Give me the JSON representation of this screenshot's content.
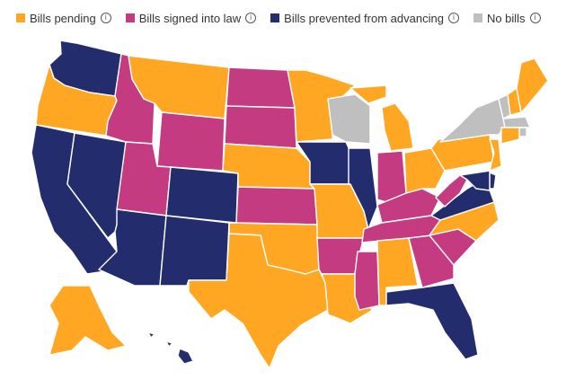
{
  "legend": [
    {
      "key": "pending",
      "label": "Bills pending",
      "color": "#FFA722",
      "icon": "info-icon"
    },
    {
      "key": "signed",
      "label": "Bills signed into law",
      "color": "#C43B82",
      "icon": "info-icon"
    },
    {
      "key": "prevented",
      "label": "Bills prevented from advancing",
      "color": "#232D6D",
      "icon": "info-icon"
    },
    {
      "key": "none",
      "label": "No bills",
      "color": "#BFBFBF",
      "icon": "info-icon"
    }
  ],
  "info_glyph": "i",
  "states": {
    "WA": "prevented",
    "OR": "pending",
    "CA": "prevented",
    "NV": "prevented",
    "ID": "signed",
    "MT": "pending",
    "WY": "signed",
    "UT": "signed",
    "AZ": "prevented",
    "CO": "prevented",
    "NM": "prevented",
    "ND": "signed",
    "SD": "signed",
    "NE": "pending",
    "KS": "signed",
    "OK": "pending",
    "TX": "pending",
    "MN": "pending",
    "IA": "prevented",
    "MO": "pending",
    "AR": "signed",
    "LA": "pending",
    "WI": "none",
    "IL": "prevented",
    "MS": "signed",
    "MI": "pending",
    "IN": "signed",
    "KY": "signed",
    "TN": "signed",
    "AL": "pending",
    "GA": "signed",
    "FL": "prevented",
    "SC": "signed",
    "NC": "pending",
    "VA": "prevented",
    "WV": "signed",
    "OH": "pending",
    "PA": "pending",
    "NY": "none",
    "VT": "none",
    "NH": "pending",
    "ME": "pending",
    "MA": "none",
    "RI": "none",
    "CT": "pending",
    "NJ": "pending",
    "DE": "prevented",
    "MD": "prevented",
    "AK": "pending",
    "HI": "prevented"
  }
}
